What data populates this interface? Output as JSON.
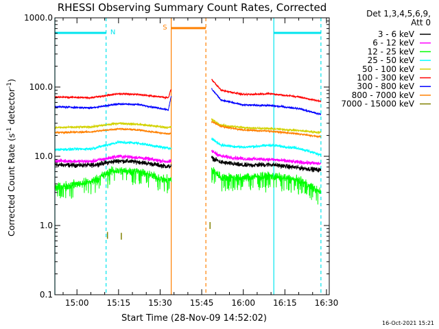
{
  "chart_data": {
    "type": "line",
    "title": "RHESSI Observing Summary Count Rates, Corrected",
    "xlabel": "Start Time (28-Nov-09 14:52:02)",
    "ylabel_main": "Corrected Count Rate (s",
    "ylabel_sup1": "-1",
    "ylabel_mid": " detector",
    "ylabel_sup2": "-1",
    "ylabel_end": ")",
    "y_scale": "log",
    "ylim": [
      0.1,
      1000
    ],
    "xlim": [
      "14:52:02",
      "16:31:00"
    ],
    "x_ticks": [
      "15:00",
      "15:15",
      "15:30",
      "15:45",
      "16:00",
      "16:15",
      "16:30"
    ],
    "y_ticks": [
      "0.1",
      "1.0",
      "10.0",
      "100.0",
      "1000.0"
    ],
    "legend": {
      "placement": "right",
      "header_line1": "Det 1,3,4,5,6,9,",
      "header_line2": "Att 0"
    },
    "flags": [
      {
        "label": "N",
        "color": "#00e5ee",
        "start": "14:52:02",
        "end": "15:10:30"
      },
      {
        "label": "",
        "color": "#00e5ee",
        "start": "16:11:00",
        "end": "16:28:00"
      },
      {
        "label": "S",
        "color": "#ff8000",
        "start": "15:34:00",
        "end": "15:46:30"
      }
    ],
    "vertical_lines": [
      {
        "time": "14:52:02",
        "color": "#00e5ee",
        "style": "solid"
      },
      {
        "time": "15:10:30",
        "color": "#00e5ee",
        "style": "dashed"
      },
      {
        "time": "15:34:00",
        "color": "#ff8000",
        "style": "solid"
      },
      {
        "time": "15:46:30",
        "color": "#ff8000",
        "style": "dashed"
      },
      {
        "time": "16:11:00",
        "color": "#00e5ee",
        "style": "solid"
      },
      {
        "time": "16:28:00",
        "color": "#00e5ee",
        "style": "dashed"
      }
    ],
    "gap": {
      "start": "15:34:00",
      "end": "15:48:30"
    },
    "series": [
      {
        "name": "3 - 6 keV",
        "color": "#000000",
        "noise": 0.05,
        "points": [
          [
            "14:52:02",
            7.5
          ],
          [
            "15:05",
            7.4
          ],
          [
            "15:15",
            8.6
          ],
          [
            "15:22",
            8.3
          ],
          [
            "15:33",
            7.1
          ],
          [
            "15:48:30",
            9.5
          ],
          [
            "15:52",
            8.2
          ],
          [
            "16:00",
            7.4
          ],
          [
            "16:10",
            7.6
          ],
          [
            "16:20",
            6.8
          ],
          [
            "16:28",
            6.3
          ]
        ]
      },
      {
        "name": "6 - 12 keV",
        "color": "#ff00ff",
        "noise": 0.04,
        "points": [
          [
            "14:52:02",
            8.6
          ],
          [
            "15:05",
            8.4
          ],
          [
            "15:15",
            10.0
          ],
          [
            "15:22",
            9.6
          ],
          [
            "15:33",
            8.3
          ],
          [
            "15:48:30",
            12.0
          ],
          [
            "15:52",
            10.0
          ],
          [
            "16:00",
            9.2
          ],
          [
            "16:10",
            9.0
          ],
          [
            "16:20",
            8.2
          ],
          [
            "16:28",
            7.8
          ]
        ]
      },
      {
        "name": "12 - 25 keV",
        "color": "#00ff00",
        "noise": 0.09,
        "points": [
          [
            "14:52:02",
            3.5
          ],
          [
            "15:05",
            4.3
          ],
          [
            "15:13",
            6.2
          ],
          [
            "15:22",
            6.1
          ],
          [
            "15:30",
            4.8
          ],
          [
            "15:33",
            4.5
          ],
          [
            "15:48:30",
            6.5
          ],
          [
            "15:52",
            5.0
          ],
          [
            "16:00",
            4.9
          ],
          [
            "16:10",
            5.2
          ],
          [
            "16:20",
            4.5
          ],
          [
            "16:28",
            3.0
          ]
        ]
      },
      {
        "name": "25 - 50 keV",
        "color": "#00ffff",
        "noise": 0.03,
        "points": [
          [
            "14:52:02",
            12.5
          ],
          [
            "15:05",
            12.8
          ],
          [
            "15:15",
            16.0
          ],
          [
            "15:22",
            15.5
          ],
          [
            "15:33",
            13.0
          ],
          [
            "15:48:30",
            18.0
          ],
          [
            "15:52",
            14.5
          ],
          [
            "16:00",
            13.5
          ],
          [
            "16:10",
            14.5
          ],
          [
            "16:20",
            13.0
          ],
          [
            "16:28",
            10.5
          ]
        ]
      },
      {
        "name": "50 - 100 keV",
        "color": "#d2d200",
        "noise": 0.025,
        "points": [
          [
            "14:52:02",
            26
          ],
          [
            "15:05",
            26.5
          ],
          [
            "15:15",
            30
          ],
          [
            "15:22",
            29
          ],
          [
            "15:33",
            26
          ],
          [
            "15:48:30",
            34
          ],
          [
            "15:52",
            28
          ],
          [
            "16:00",
            26
          ],
          [
            "16:10",
            25
          ],
          [
            "16:20",
            23.5
          ],
          [
            "16:28",
            22
          ]
        ]
      },
      {
        "name": "100 - 300 keV",
        "color": "#ff0000",
        "noise": 0.018,
        "points": [
          [
            "14:52:02",
            72
          ],
          [
            "15:05",
            70
          ],
          [
            "15:15",
            80
          ],
          [
            "15:22",
            78
          ],
          [
            "15:33",
            70
          ],
          [
            "15:34",
            95
          ],
          [
            "15:48:30",
            130
          ],
          [
            "15:52",
            90
          ],
          [
            "16:00",
            78
          ],
          [
            "16:10",
            80
          ],
          [
            "16:20",
            72
          ],
          [
            "16:28",
            62
          ]
        ]
      },
      {
        "name": "300 - 800 keV",
        "color": "#0000ff",
        "noise": 0.02,
        "points": [
          [
            "14:52:02",
            52
          ],
          [
            "15:05",
            50
          ],
          [
            "15:15",
            57
          ],
          [
            "15:22",
            56
          ],
          [
            "15:33",
            47
          ],
          [
            "15:34",
            75
          ],
          [
            "15:48:30",
            95
          ],
          [
            "15:52",
            65
          ],
          [
            "16:00",
            55
          ],
          [
            "16:10",
            54
          ],
          [
            "16:20",
            49
          ],
          [
            "16:28",
            40
          ]
        ]
      },
      {
        "name": "800 - 7000 keV",
        "color": "#ff8000",
        "noise": 0.02,
        "points": [
          [
            "14:52:02",
            22
          ],
          [
            "15:05",
            22.5
          ],
          [
            "15:15",
            25
          ],
          [
            "15:22",
            24
          ],
          [
            "15:33",
            21
          ],
          [
            "15:48:30",
            32
          ],
          [
            "15:52",
            27
          ],
          [
            "16:00",
            24
          ],
          [
            "16:10",
            23
          ],
          [
            "16:20",
            21
          ],
          [
            "16:28",
            19
          ]
        ]
      },
      {
        "name": "7000 - 15000 keV",
        "color": "#808000",
        "noise": 0,
        "points": []
      }
    ],
    "sparse_marks": {
      "series": "7000 - 15000 keV",
      "values": [
        [
          "15:11:00",
          0.72
        ],
        [
          "15:16:00",
          0.7
        ],
        [
          "15:48:00",
          1.0
        ]
      ]
    }
  },
  "footer": {
    "date_stamp": "16-Oct-2021 15:21"
  }
}
